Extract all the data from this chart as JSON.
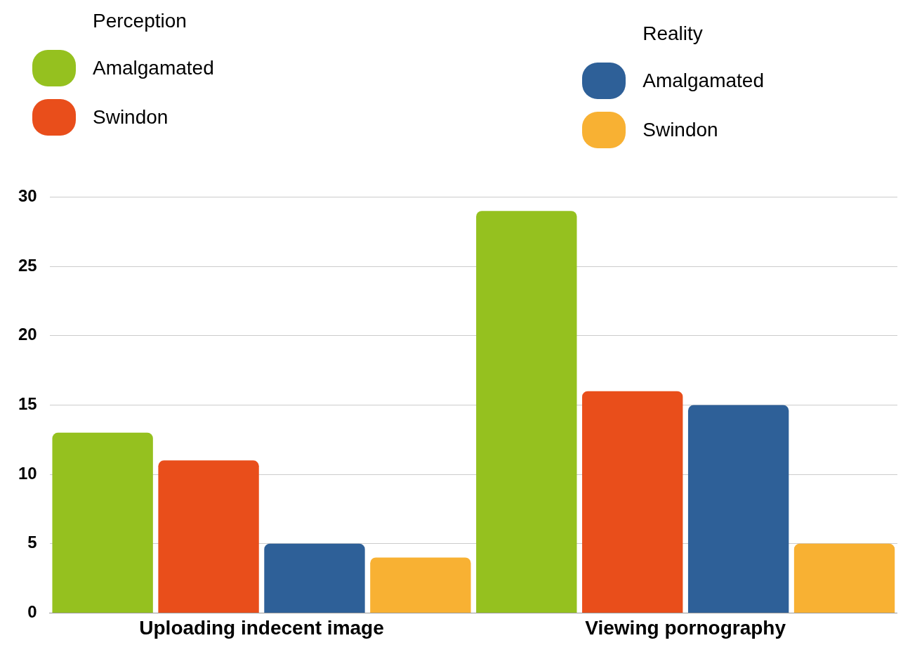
{
  "chart_data": {
    "type": "bar",
    "categories": [
      "Uploading indecent image",
      "Viewing pornography"
    ],
    "series": [
      {
        "name": "Amalgamated",
        "color": "#95c11f",
        "values": [
          13,
          29
        ]
      },
      {
        "name": "Swindon",
        "color": "#e94e1b",
        "values": [
          11,
          16
        ]
      },
      {
        "name": "Amalgamated",
        "color": "#2e6098",
        "values": [
          5,
          15
        ]
      },
      {
        "name": "Swindon",
        "color": "#f8b133",
        "values": [
          4,
          5
        ]
      }
    ],
    "annotations": [
      "Perception",
      "Reality"
    ],
    "ylim": [
      0,
      30
    ],
    "yticks": [
      0,
      5,
      10,
      15,
      20,
      25,
      30
    ],
    "grid": "y",
    "legend": "top"
  }
}
